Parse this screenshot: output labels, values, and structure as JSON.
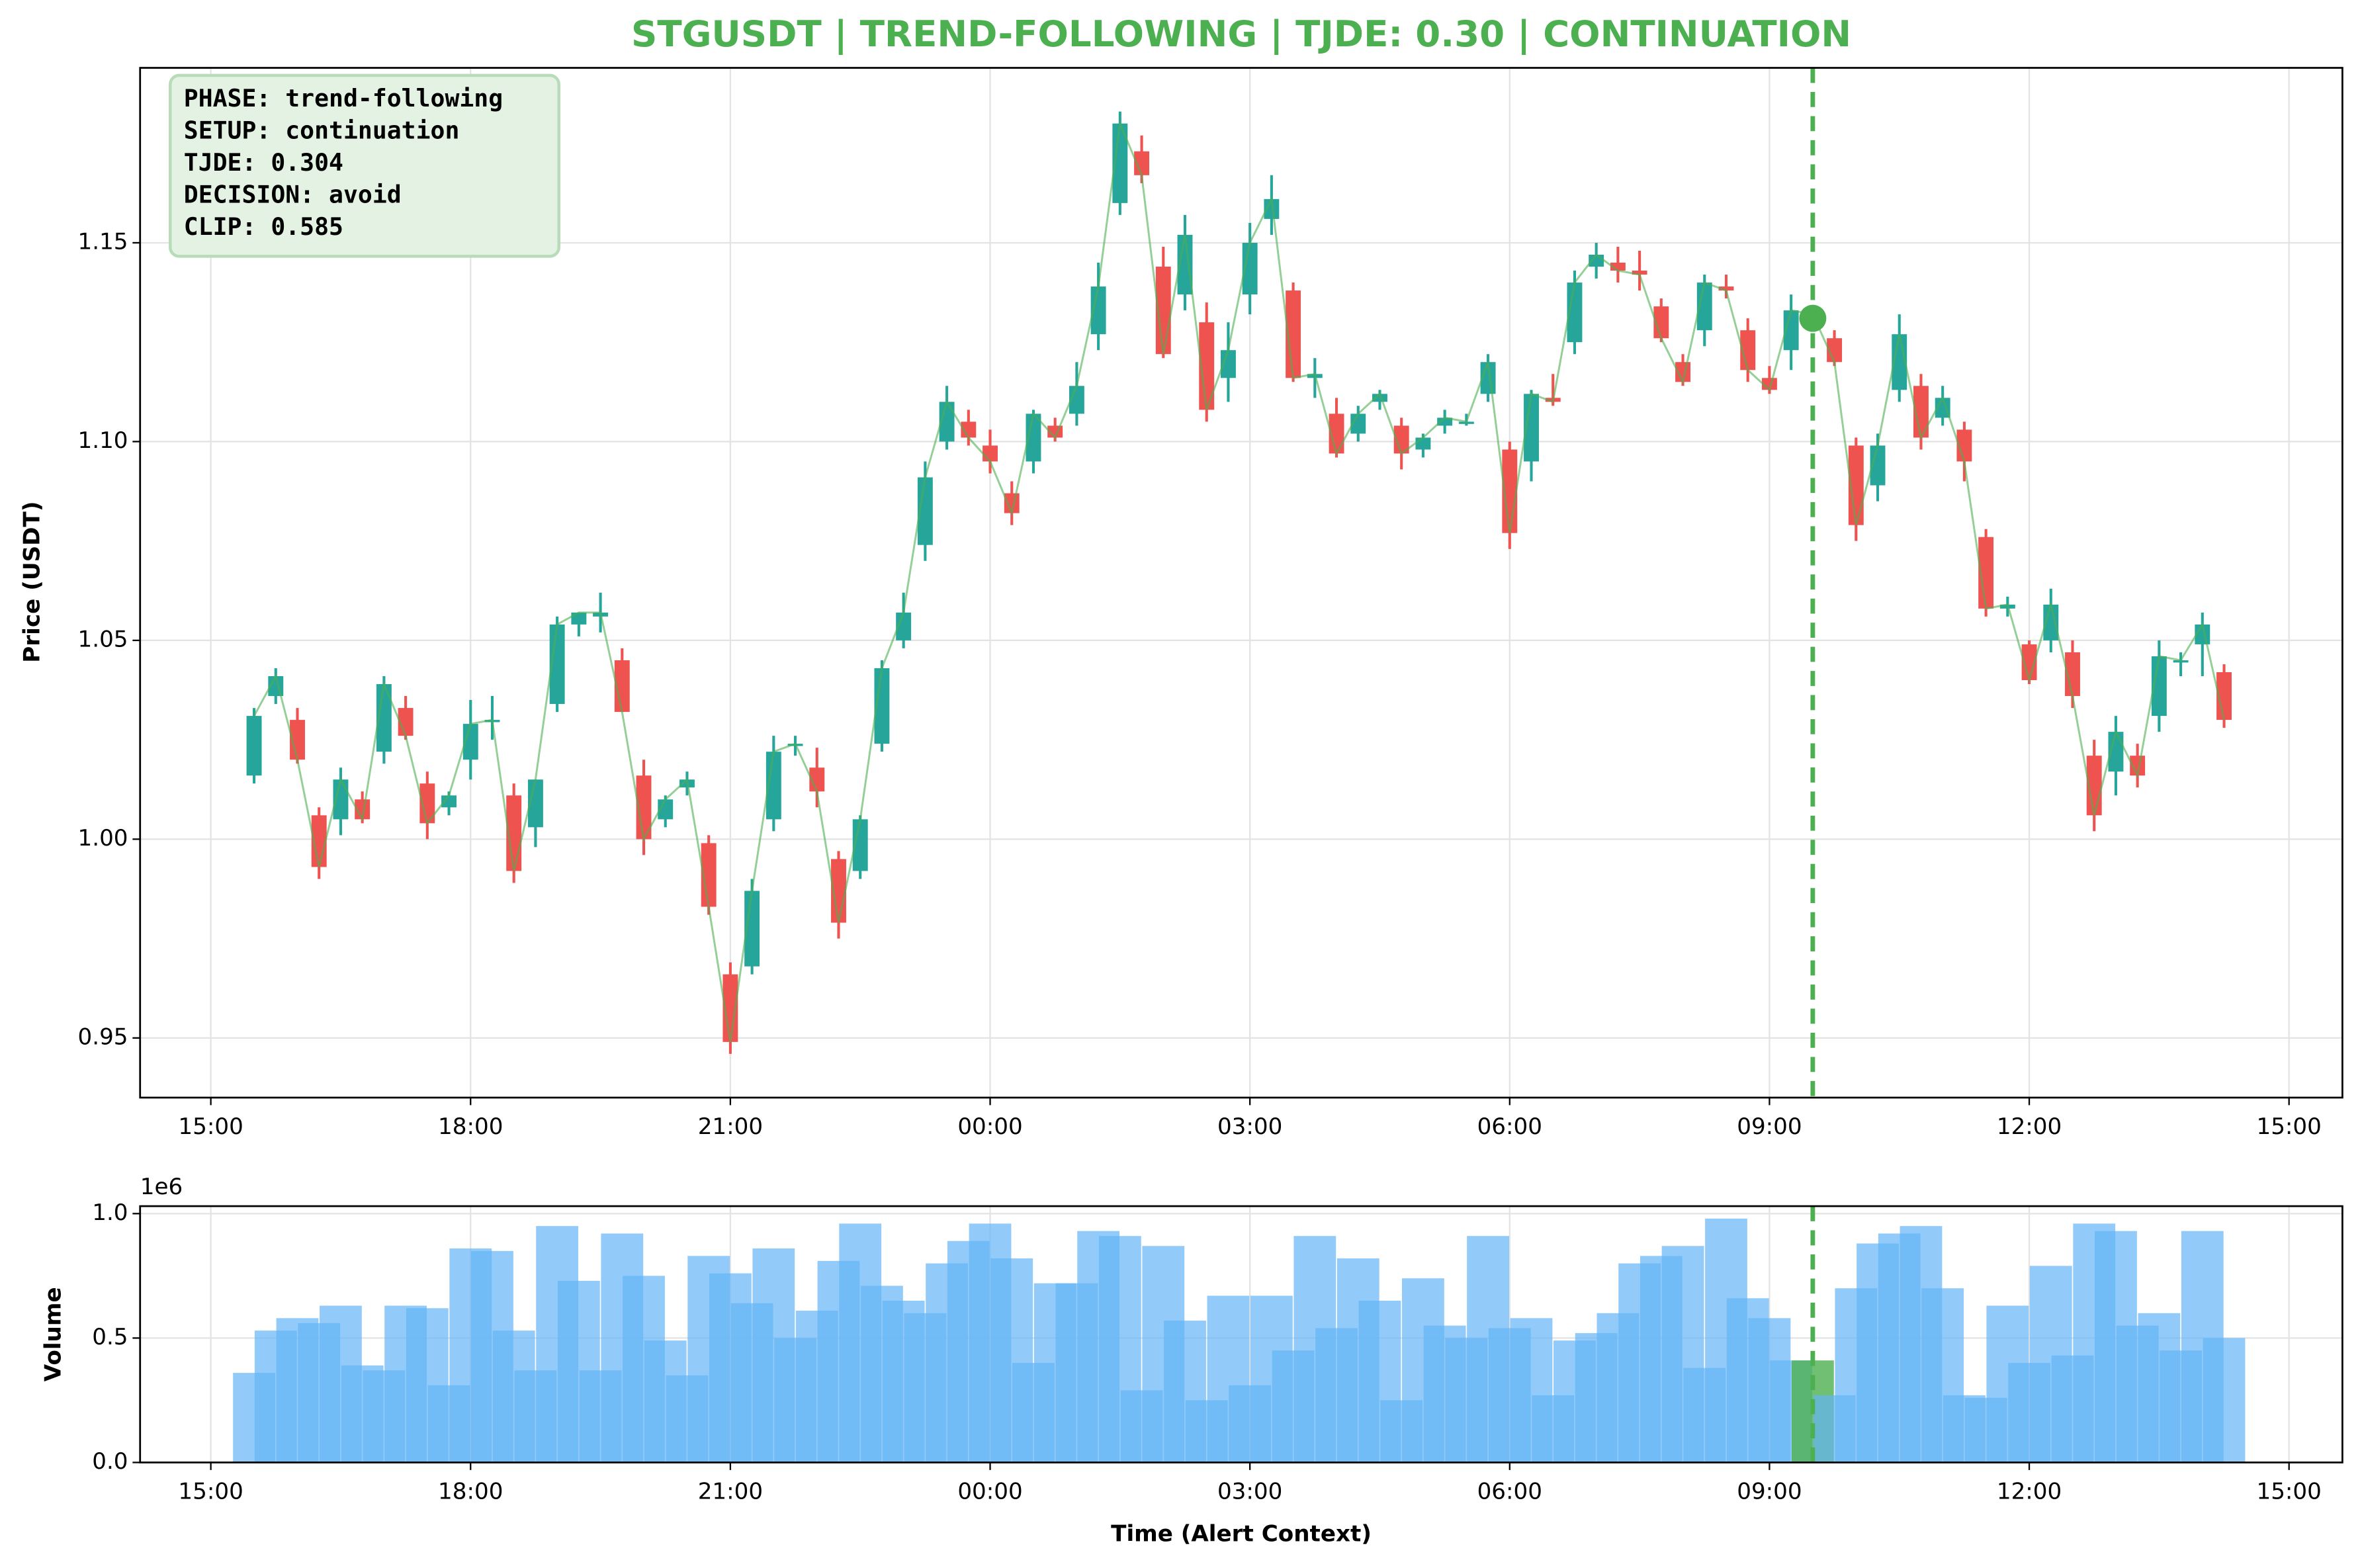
{
  "chart_data": [
    {
      "type": "candlestick",
      "title": "STGUSDT | TREND-FOLLOWING | TJDE: 0.30 | CONTINUATION",
      "ylabel": "Price (USDT)",
      "x": [
        "15:30",
        "15:45",
        "16:00",
        "16:15",
        "16:30",
        "16:45",
        "17:00",
        "17:15",
        "17:30",
        "17:45",
        "18:00",
        "18:15",
        "18:30",
        "18:45",
        "19:00",
        "19:15",
        "19:30",
        "19:45",
        "20:00",
        "20:15",
        "20:30",
        "20:45",
        "21:00",
        "21:15",
        "21:30",
        "21:45",
        "22:00",
        "22:15",
        "22:30",
        "22:45",
        "23:00",
        "23:15",
        "23:30",
        "23:45",
        "00:00",
        "00:15",
        "00:30",
        "00:45",
        "01:00",
        "01:15",
        "01:30",
        "01:45",
        "02:00",
        "02:15",
        "02:30",
        "02:45",
        "03:00",
        "03:15",
        "03:30",
        "03:45",
        "04:00",
        "04:15",
        "04:30",
        "04:45",
        "05:00",
        "05:15",
        "05:30",
        "05:45",
        "06:00",
        "06:15",
        "06:30",
        "06:45",
        "07:00",
        "07:15",
        "07:30",
        "07:45",
        "08:00",
        "08:15",
        "08:30",
        "08:45",
        "09:00",
        "09:15",
        "09:30",
        "09:45",
        "10:00",
        "10:15",
        "10:30",
        "10:45",
        "11:00",
        "11:15",
        "11:30",
        "11:45",
        "12:00",
        "12:15",
        "12:30",
        "12:45",
        "13:00",
        "13:15",
        "13:30",
        "13:45",
        "14:00",
        "14:15"
      ],
      "open": [
        1.016,
        1.036,
        1.03,
        1.006,
        1.005,
        1.01,
        1.022,
        1.033,
        1.014,
        1.008,
        1.02,
        1.03,
        1.011,
        1.003,
        1.034,
        1.054,
        1.056,
        1.045,
        1.016,
        1.005,
        1.013,
        0.999,
        0.966,
        0.968,
        1.005,
        1.024,
        1.018,
        0.995,
        0.992,
        1.024,
        1.05,
        1.074,
        1.1,
        1.105,
        1.099,
        1.087,
        1.095,
        1.104,
        1.107,
        1.127,
        1.16,
        1.173,
        1.144,
        1.137,
        1.13,
        1.116,
        1.137,
        1.156,
        1.138,
        1.116,
        1.107,
        1.102,
        1.11,
        1.104,
        1.098,
        1.104,
        1.105,
        1.112,
        1.098,
        1.095,
        1.111,
        1.125,
        1.144,
        1.145,
        1.143,
        1.134,
        1.12,
        1.128,
        1.139,
        1.128,
        1.116,
        1.123,
        1.131,
        1.126,
        1.099,
        1.089,
        1.113,
        1.114,
        1.106,
        1.103,
        1.076,
        1.058,
        1.049,
        1.05,
        1.047,
        1.021,
        1.017,
        1.021,
        1.031,
        1.045,
        1.049,
        1.042
      ],
      "high": [
        1.033,
        1.043,
        1.033,
        1.008,
        1.018,
        1.012,
        1.041,
        1.036,
        1.017,
        1.012,
        1.035,
        1.036,
        1.014,
        1.015,
        1.056,
        1.057,
        1.062,
        1.048,
        1.02,
        1.011,
        1.017,
        1.001,
        0.969,
        0.99,
        1.026,
        1.026,
        1.023,
        0.997,
        1.006,
        1.045,
        1.062,
        1.095,
        1.114,
        1.108,
        1.103,
        1.09,
        1.108,
        1.106,
        1.12,
        1.145,
        1.183,
        1.177,
        1.149,
        1.157,
        1.135,
        1.13,
        1.155,
        1.167,
        1.14,
        1.121,
        1.111,
        1.109,
        1.113,
        1.106,
        1.102,
        1.108,
        1.107,
        1.122,
        1.1,
        1.113,
        1.117,
        1.143,
        1.15,
        1.149,
        1.148,
        1.136,
        1.122,
        1.142,
        1.142,
        1.131,
        1.119,
        1.137,
        1.133,
        1.128,
        1.101,
        1.102,
        1.132,
        1.117,
        1.114,
        1.105,
        1.078,
        1.061,
        1.05,
        1.063,
        1.05,
        1.025,
        1.031,
        1.024,
        1.05,
        1.047,
        1.057,
        1.044
      ],
      "low": [
        1.014,
        1.034,
        1.019,
        0.99,
        1.001,
        1.004,
        1.019,
        1.025,
        1.0,
        1.006,
        1.015,
        1.025,
        0.989,
        0.998,
        1.032,
        1.051,
        1.052,
        1.032,
        0.996,
        1.003,
        1.011,
        0.981,
        0.946,
        0.966,
        1.002,
        1.021,
        1.008,
        0.975,
        0.99,
        1.022,
        1.048,
        1.07,
        1.098,
        1.099,
        1.092,
        1.079,
        1.092,
        1.1,
        1.104,
        1.123,
        1.157,
        1.165,
        1.121,
        1.133,
        1.105,
        1.11,
        1.132,
        1.152,
        1.115,
        1.111,
        1.096,
        1.1,
        1.108,
        1.093,
        1.096,
        1.102,
        1.104,
        1.11,
        1.073,
        1.09,
        1.109,
        1.122,
        1.141,
        1.14,
        1.138,
        1.125,
        1.114,
        1.124,
        1.136,
        1.115,
        1.112,
        1.118,
        1.129,
        1.119,
        1.075,
        1.085,
        1.11,
        1.098,
        1.104,
        1.09,
        1.056,
        1.056,
        1.039,
        1.047,
        1.033,
        1.002,
        1.011,
        1.013,
        1.027,
        1.041,
        1.041,
        1.028
      ],
      "close": [
        1.031,
        1.041,
        1.02,
        0.993,
        1.015,
        1.005,
        1.039,
        1.026,
        1.004,
        1.011,
        1.029,
        1.03,
        0.992,
        1.015,
        1.054,
        1.057,
        1.057,
        1.032,
        1.0,
        1.01,
        1.015,
        0.983,
        0.949,
        0.987,
        1.022,
        1.024,
        1.012,
        0.979,
        1.005,
        1.043,
        1.057,
        1.091,
        1.11,
        1.101,
        1.095,
        1.082,
        1.107,
        1.101,
        1.114,
        1.139,
        1.18,
        1.167,
        1.122,
        1.152,
        1.108,
        1.123,
        1.15,
        1.161,
        1.116,
        1.117,
        1.097,
        1.107,
        1.112,
        1.097,
        1.101,
        1.106,
        1.105,
        1.12,
        1.077,
        1.112,
        1.11,
        1.14,
        1.147,
        1.143,
        1.142,
        1.126,
        1.115,
        1.14,
        1.138,
        1.118,
        1.113,
        1.133,
        1.132,
        1.12,
        1.079,
        1.099,
        1.127,
        1.101,
        1.111,
        1.095,
        1.058,
        1.059,
        1.04,
        1.059,
        1.036,
        1.006,
        1.027,
        1.016,
        1.046,
        1.045,
        1.054,
        1.03
      ],
      "up_color": "#26a69a",
      "down_color": "#ef5350",
      "line_color": "#4caf50",
      "xlim": [
        "14:11",
        "15:37"
      ],
      "xticks": [
        "15:00",
        "18:00",
        "21:00",
        "00:00",
        "03:00",
        "06:00",
        "09:00",
        "12:00",
        "15:00"
      ],
      "ylim": [
        0.935,
        1.194
      ],
      "yticks": [
        0.95,
        {
          "value": 1,
          "label": "1.00"
        },
        1.05,
        {
          "value": 1.1,
          "label": "1.10"
        },
        1.15
      ],
      "grid": true,
      "alert": {
        "x": "09:30",
        "price": 1.131,
        "color": "#4caf50"
      },
      "annotation": [
        "PHASE: trend-following",
        "SETUP: continuation",
        "TJDE: 0.304",
        "DECISION: avoid",
        "CLIP: 0.585"
      ]
    },
    {
      "type": "bar",
      "ylabel": "Volume",
      "xlabel": "Time (Alert Context)",
      "offset_label": "1e6",
      "x": [
        "15:30",
        "15:45",
        "16:00",
        "16:15",
        "16:30",
        "16:45",
        "17:00",
        "17:15",
        "17:30",
        "17:45",
        "18:00",
        "18:15",
        "18:30",
        "18:45",
        "19:00",
        "19:15",
        "19:30",
        "19:45",
        "20:00",
        "20:15",
        "20:30",
        "20:45",
        "21:00",
        "21:15",
        "21:30",
        "21:45",
        "22:00",
        "22:15",
        "22:30",
        "22:45",
        "23:00",
        "23:15",
        "23:30",
        "23:45",
        "00:00",
        "00:15",
        "00:30",
        "00:45",
        "01:00",
        "01:15",
        "01:30",
        "01:45",
        "02:00",
        "02:15",
        "02:30",
        "02:45",
        "03:00",
        "03:15",
        "03:30",
        "03:45",
        "04:00",
        "04:15",
        "04:30",
        "04:45",
        "05:00",
        "05:15",
        "05:30",
        "05:45",
        "06:00",
        "06:15",
        "06:30",
        "06:45",
        "07:00",
        "07:15",
        "07:30",
        "07:45",
        "08:00",
        "08:15",
        "08:30",
        "08:45",
        "09:00",
        "09:15",
        "09:30",
        "09:45",
        "10:00",
        "10:15",
        "10:30",
        "10:45",
        "11:00",
        "11:15",
        "11:30",
        "11:45",
        "12:00",
        "12:15",
        "12:30",
        "12:45",
        "13:00",
        "13:15",
        "13:30",
        "13:45",
        "14:00",
        "14:15"
      ],
      "values": [
        0.36,
        0.53,
        0.58,
        0.56,
        0.63,
        0.39,
        0.37,
        0.63,
        0.62,
        0.31,
        0.86,
        0.85,
        0.53,
        0.37,
        0.95,
        0.73,
        0.37,
        0.92,
        0.75,
        0.49,
        0.35,
        0.83,
        0.76,
        0.64,
        0.86,
        0.5,
        0.61,
        0.81,
        0.96,
        0.71,
        0.65,
        0.6,
        0.8,
        0.89,
        0.96,
        0.82,
        0.4,
        0.72,
        0.72,
        0.93,
        0.91,
        0.29,
        0.87,
        0.57,
        0.25,
        0.67,
        0.31,
        0.67,
        0.45,
        0.91,
        0.54,
        0.82,
        0.65,
        0.25,
        0.74,
        0.55,
        0.5,
        0.91,
        0.54,
        0.58,
        0.27,
        0.49,
        0.52,
        0.6,
        0.8,
        0.83,
        0.87,
        0.38,
        0.98,
        0.66,
        0.58,
        0.41,
        0.41,
        0.27,
        0.7,
        0.88,
        0.92,
        0.95,
        0.7,
        0.27,
        0.26,
        0.63,
        0.4,
        0.79,
        0.43,
        0.96,
        0.93,
        0.55,
        0.6,
        0.45,
        0.93,
        0.5
      ],
      "color": "#64b5f6",
      "alert_color": "#4caf50",
      "xlim": [
        "14:11",
        "15:37"
      ],
      "xticks": [
        "15:00",
        "18:00",
        "21:00",
        "00:00",
        "03:00",
        "06:00",
        "09:00",
        "12:00",
        "15:00"
      ],
      "ylim": [
        0,
        1.03
      ],
      "yticks": [
        {
          "value": 0,
          "label": "0.0"
        },
        0.5,
        {
          "value": 1,
          "label": "1.0"
        }
      ],
      "grid": true
    }
  ]
}
